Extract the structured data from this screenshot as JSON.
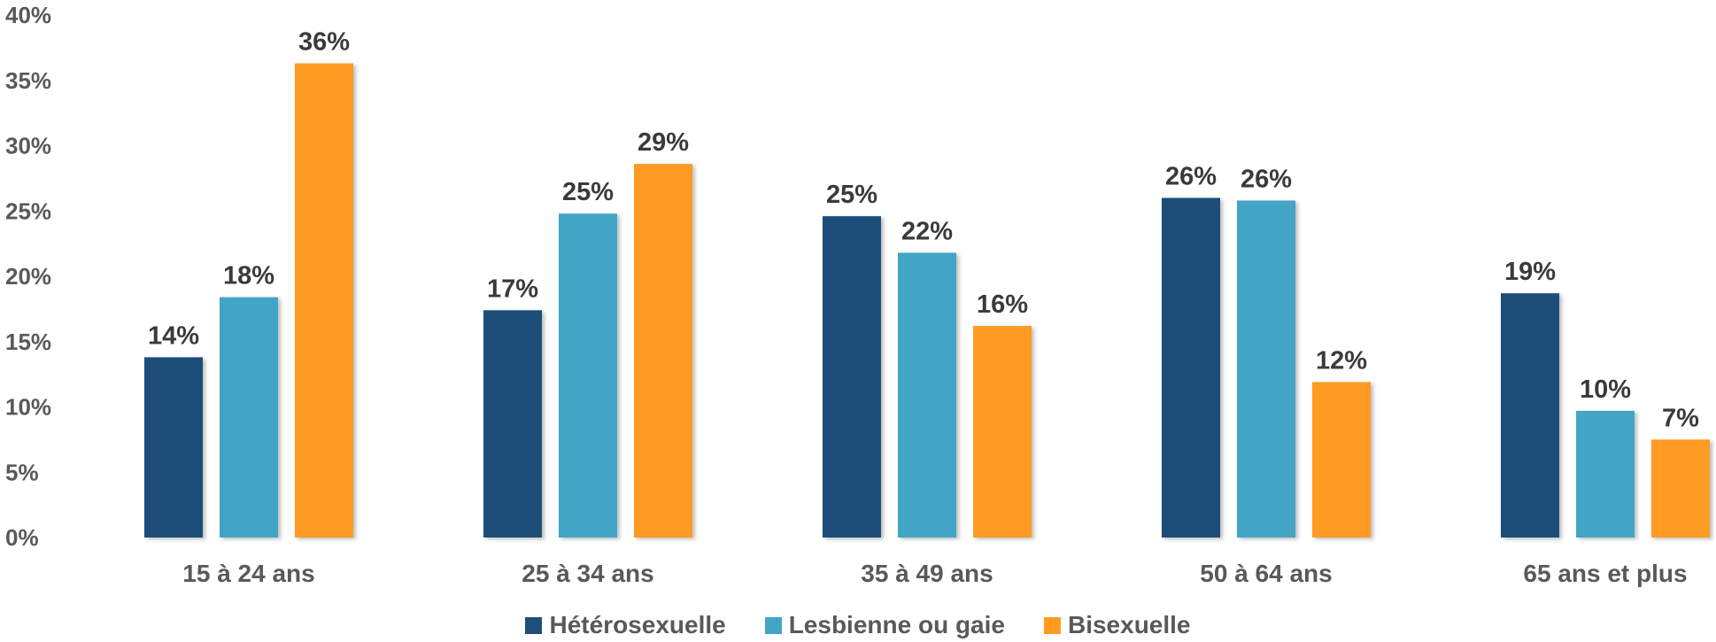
{
  "chart_data": {
    "type": "bar",
    "categories": [
      "15 à 24 ans",
      "25 à 34 ans",
      "35 à 49 ans",
      "50 à 64 ans",
      "65 ans et plus"
    ],
    "series": [
      {
        "name": "Hétérosexuelle",
        "color": "#1f4e79",
        "values": [
          14,
          17,
          25,
          26,
          19
        ],
        "labels": [
          "14%",
          "17%",
          "25%",
          "26%",
          "19%"
        ],
        "plotted": [
          13.8,
          17.4,
          24.6,
          26.0,
          18.7
        ]
      },
      {
        "name": "Lesbienne ou gaie",
        "color": "#43a5c5",
        "values": [
          18,
          25,
          22,
          26,
          10
        ],
        "labels": [
          "18%",
          "25%",
          "22%",
          "26%",
          "10%"
        ],
        "plotted": [
          18.4,
          24.8,
          21.8,
          25.8,
          9.7
        ]
      },
      {
        "name": "Bisexuelle",
        "color": "#ff9b21",
        "values": [
          36,
          29,
          16,
          12,
          7
        ],
        "labels": [
          "36%",
          "29%",
          "16%",
          "12%",
          "7%"
        ],
        "plotted": [
          36.3,
          28.6,
          16.2,
          11.9,
          7.5
        ]
      }
    ],
    "y_ticks": [
      "0%",
      "5%",
      "10%",
      "15%",
      "20%",
      "25%",
      "30%",
      "35%",
      "40%"
    ],
    "ylim": [
      0,
      40
    ],
    "grid": false,
    "legend_position": "bottom"
  }
}
